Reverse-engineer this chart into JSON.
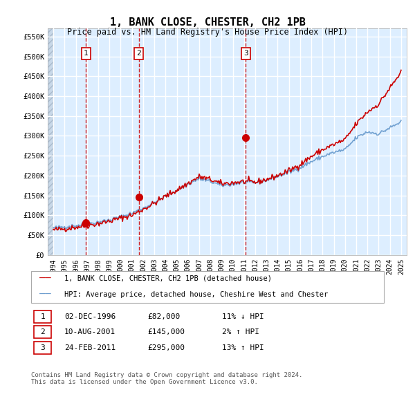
{
  "title": "1, BANK CLOSE, CHESTER, CH2 1PB",
  "subtitle": "Price paid vs. HM Land Registry's House Price Index (HPI)",
  "ylabel_ticks": [
    "£0",
    "£50K",
    "£100K",
    "£150K",
    "£200K",
    "£250K",
    "£300K",
    "£350K",
    "£400K",
    "£450K",
    "£500K",
    "£550K"
  ],
  "ytick_values": [
    0,
    50000,
    100000,
    150000,
    200000,
    250000,
    300000,
    350000,
    400000,
    450000,
    500000,
    550000
  ],
  "ylim": [
    0,
    570000
  ],
  "xlim_start": 1993.5,
  "xlim_end": 2025.5,
  "background_color": "#ddeeff",
  "grid_color": "#ffffff",
  "sale_dates": [
    1996.92,
    2001.61,
    2011.15
  ],
  "sale_prices": [
    82000,
    145000,
    295000
  ],
  "sale_labels": [
    "1",
    "2",
    "3"
  ],
  "hpi_line_color": "#6699cc",
  "price_line_color": "#cc0000",
  "sale_marker_color": "#cc0000",
  "vline_color": "#cc0000",
  "legend_label_price": "1, BANK CLOSE, CHESTER, CH2 1PB (detached house)",
  "legend_label_hpi": "HPI: Average price, detached house, Cheshire West and Chester",
  "table_rows": [
    {
      "label": "1",
      "date": "02-DEC-1996",
      "price": "£82,000",
      "hpi": "11% ↓ HPI"
    },
    {
      "label": "2",
      "date": "10-AUG-2001",
      "price": "£145,000",
      "hpi": "2% ↑ HPI"
    },
    {
      "label": "3",
      "date": "24-FEB-2011",
      "price": "£295,000",
      "hpi": "13% ↑ HPI"
    }
  ],
  "footnote": "Contains HM Land Registry data © Crown copyright and database right 2024.\nThis data is licensed under the Open Government Licence v3.0.",
  "hpi_data_years": [
    1994,
    1995,
    1996,
    1997,
    1998,
    1999,
    2000,
    2001,
    2002,
    2003,
    2004,
    2005,
    2006,
    2007,
    2008,
    2009,
    2010,
    2011,
    2012,
    2013,
    2014,
    2015,
    2016,
    2017,
    2018,
    2019,
    2020,
    2021,
    2022,
    2023,
    2024,
    2025
  ],
  "hpi_data_values": [
    68000,
    71000,
    74000,
    78000,
    83000,
    88000,
    96000,
    105000,
    118000,
    132000,
    148000,
    163000,
    178000,
    192000,
    185000,
    175000,
    178000,
    183000,
    182000,
    188000,
    198000,
    208000,
    220000,
    235000,
    248000,
    258000,
    265000,
    295000,
    310000,
    305000,
    320000,
    335000
  ],
  "price_data_years": [
    1994,
    1995,
    1996,
    1997,
    1998,
    1999,
    2000,
    2001,
    2002,
    2003,
    2004,
    2005,
    2006,
    2007,
    2008,
    2009,
    2010,
    2011,
    2012,
    2013,
    2014,
    2015,
    2016,
    2017,
    2018,
    2019,
    2020,
    2021,
    2022,
    2023,
    2024,
    2025
  ],
  "price_data_values": [
    63000,
    66000,
    70000,
    74000,
    79000,
    85000,
    93000,
    100000,
    115000,
    130000,
    148000,
    163000,
    180000,
    197000,
    190000,
    179000,
    182000,
    185000,
    183000,
    190000,
    200000,
    212000,
    228000,
    248000,
    265000,
    278000,
    290000,
    330000,
    360000,
    380000,
    420000,
    460000
  ]
}
